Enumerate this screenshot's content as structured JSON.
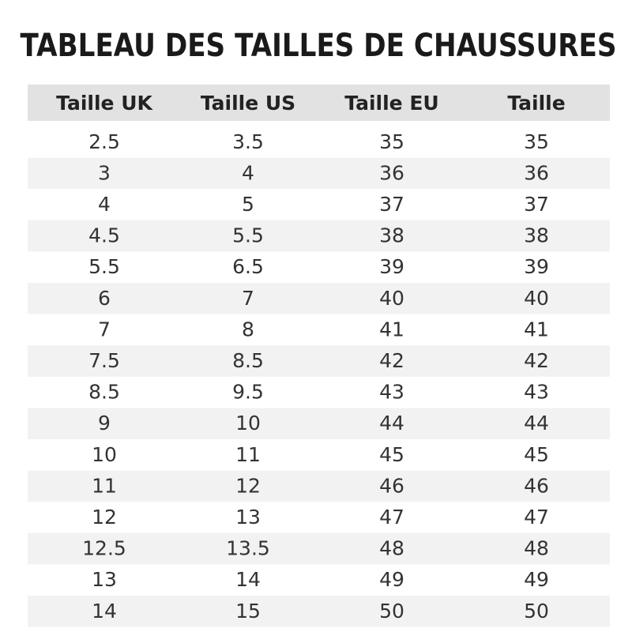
{
  "header": {
    "title": "TABLEAU DES TAILLES DE CHAUSSURES"
  },
  "table": {
    "columns": [
      "Taille UK",
      "Taille US",
      "Taille EU",
      "Taille"
    ],
    "rows": [
      [
        "2.5",
        "3.5",
        "35",
        "35"
      ],
      [
        "3",
        "4",
        "36",
        "36"
      ],
      [
        "4",
        "5",
        "37",
        "37"
      ],
      [
        "4.5",
        "5.5",
        "38",
        "38"
      ],
      [
        "5.5",
        "6.5",
        "39",
        "39"
      ],
      [
        "6",
        "7",
        "40",
        "40"
      ],
      [
        "7",
        "8",
        "41",
        "41"
      ],
      [
        "7.5",
        "8.5",
        "42",
        "42"
      ],
      [
        "8.5",
        "9.5",
        "43",
        "43"
      ],
      [
        "9",
        "10",
        "44",
        "44"
      ],
      [
        "10",
        "11",
        "45",
        "45"
      ],
      [
        "11",
        "12",
        "46",
        "46"
      ],
      [
        "12",
        "13",
        "47",
        "47"
      ],
      [
        "12.5",
        "13.5",
        "48",
        "48"
      ],
      [
        "13",
        "14",
        "49",
        "49"
      ],
      [
        "14",
        "15",
        "50",
        "50"
      ]
    ]
  }
}
